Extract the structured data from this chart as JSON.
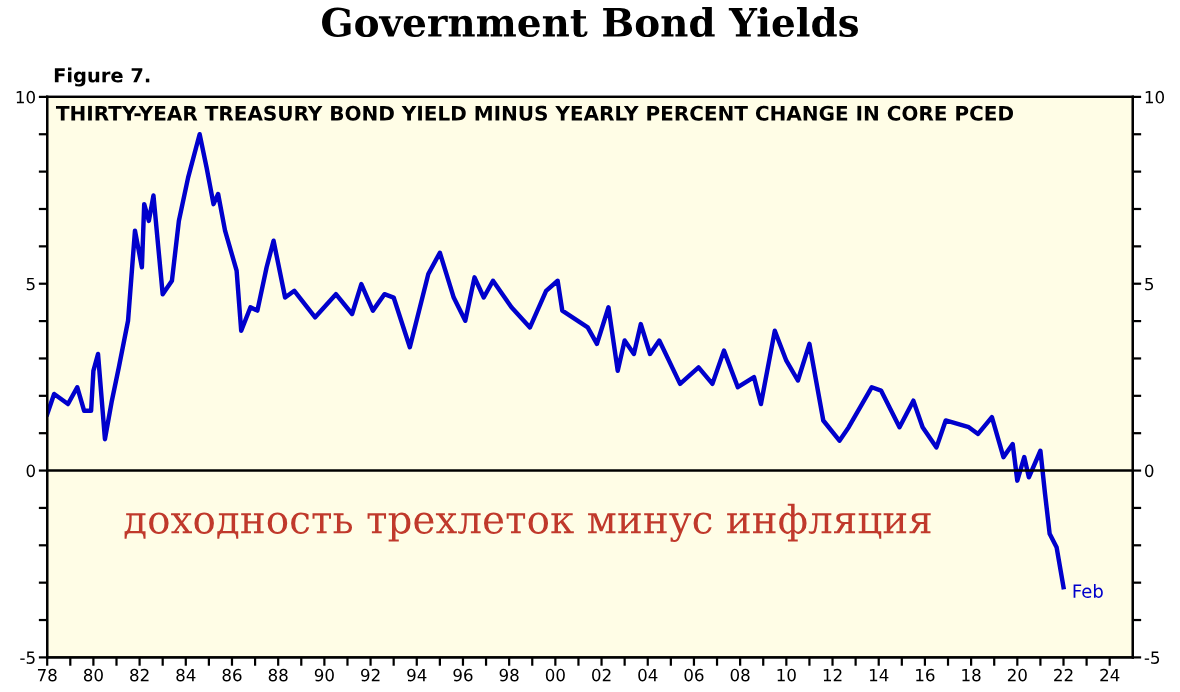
{
  "chart_data": {
    "type": "line",
    "title": "Government Bond Yields",
    "subtitle": "THIRTY-YEAR TREASURY BOND YIELD MINUS YEARLY PERCENT CHANGE IN CORE PCED",
    "x": [
      1978.0,
      1978.3,
      1978.9,
      1979.3,
      1979.6,
      1979.9,
      1980.0,
      1980.2,
      1980.5,
      1980.8,
      1981.1,
      1981.5,
      1981.8,
      1982.1,
      1982.2,
      1982.4,
      1982.6,
      1983.0,
      1983.4,
      1983.7,
      1984.1,
      1984.6,
      1984.9,
      1985.2,
      1985.4,
      1985.7,
      1986.2,
      1986.4,
      1986.8,
      1987.1,
      1987.5,
      1987.8,
      1988.3,
      1988.7,
      1989.6,
      1990.5,
      1991.2,
      1991.6,
      1992.1,
      1992.6,
      1993.0,
      1993.7,
      1994.5,
      1995.0,
      1995.6,
      1996.1,
      1996.5,
      1996.9,
      1997.3,
      1998.1,
      1998.9,
      1999.6,
      2000.1,
      2000.3,
      2001.4,
      2001.8,
      2002.3,
      2002.7,
      2003.0,
      2003.4,
      2003.7,
      2004.1,
      2004.5,
      2005.4,
      2006.2,
      2006.8,
      2007.3,
      2007.9,
      2008.6,
      2008.9,
      2009.5,
      2010.0,
      2010.5,
      2011.0,
      2011.6,
      2012.3,
      2012.7,
      2013.7,
      2014.1,
      2014.9,
      2015.5,
      2015.9,
      2016.5,
      2016.9,
      2017.9,
      2018.3,
      2018.9,
      2019.4,
      2019.8,
      2020.0,
      2020.3,
      2020.5,
      2021.0,
      2021.2,
      2021.4,
      2021.7,
      2022.0
    ],
    "series": [
      {
        "color": "#0000cc",
        "values": [
          1.51,
          2.05,
          1.78,
          2.23,
          1.6,
          1.6,
          2.67,
          3.12,
          0.84,
          1.87,
          2.76,
          4.01,
          6.42,
          5.44,
          7.13,
          6.68,
          7.36,
          4.72,
          5.08,
          6.68,
          7.84,
          9.0,
          8.11,
          7.13,
          7.4,
          6.42,
          5.35,
          3.74,
          4.37,
          4.28,
          5.44,
          6.15,
          4.63,
          4.81,
          4.1,
          4.72,
          4.19,
          4.99,
          4.28,
          4.72,
          4.63,
          3.3,
          5.26,
          5.83,
          4.63,
          4.01,
          5.17,
          4.63,
          5.08,
          4.37,
          3.83,
          4.81,
          5.08,
          4.28,
          3.83,
          3.39,
          4.37,
          2.67,
          3.48,
          3.12,
          3.92,
          3.12,
          3.48,
          2.32,
          2.76,
          2.32,
          3.21,
          2.23,
          2.5,
          1.78,
          3.74,
          2.94,
          2.41,
          3.39,
          1.34,
          0.8,
          1.16,
          2.23,
          2.14,
          1.16,
          1.87,
          1.16,
          0.62,
          1.34,
          1.16,
          0.98,
          1.43,
          0.36,
          0.71,
          -0.27,
          0.36,
          -0.18,
          0.53,
          -0.62,
          -1.69,
          -2.05,
          -3.12
        ]
      }
    ],
    "xlim": [
      1978,
      2025
    ],
    "xticks": [
      {
        "value": 1978,
        "label": "78"
      },
      {
        "value": 1979,
        "label": null
      },
      {
        "value": 1980,
        "label": "80"
      },
      {
        "value": 1981,
        "label": null
      },
      {
        "value": 1982,
        "label": "82"
      },
      {
        "value": 1983,
        "label": null
      },
      {
        "value": 1984,
        "label": "84"
      },
      {
        "value": 1985,
        "label": null
      },
      {
        "value": 1986,
        "label": "86"
      },
      {
        "value": 1987,
        "label": null
      },
      {
        "value": 1988,
        "label": "88"
      },
      {
        "value": 1989,
        "label": null
      },
      {
        "value": 1990,
        "label": "90"
      },
      {
        "value": 1991,
        "label": null
      },
      {
        "value": 1992,
        "label": "92"
      },
      {
        "value": 1993,
        "label": null
      },
      {
        "value": 1994,
        "label": "94"
      },
      {
        "value": 1995,
        "label": null
      },
      {
        "value": 1996,
        "label": "96"
      },
      {
        "value": 1997,
        "label": null
      },
      {
        "value": 1998,
        "label": "98"
      },
      {
        "value": 1999,
        "label": null
      },
      {
        "value": 2000,
        "label": "00"
      },
      {
        "value": 2001,
        "label": null
      },
      {
        "value": 2002,
        "label": "02"
      },
      {
        "value": 2003,
        "label": null
      },
      {
        "value": 2004,
        "label": "04"
      },
      {
        "value": 2005,
        "label": null
      },
      {
        "value": 2006,
        "label": "06"
      },
      {
        "value": 2007,
        "label": null
      },
      {
        "value": 2008,
        "label": "08"
      },
      {
        "value": 2009,
        "label": null
      },
      {
        "value": 2010,
        "label": "10"
      },
      {
        "value": 2011,
        "label": null
      },
      {
        "value": 2012,
        "label": "12"
      },
      {
        "value": 2013,
        "label": null
      },
      {
        "value": 2014,
        "label": "14"
      },
      {
        "value": 2015,
        "label": null
      },
      {
        "value": 2016,
        "label": "16"
      },
      {
        "value": 2017,
        "label": null
      },
      {
        "value": 2018,
        "label": "18"
      },
      {
        "value": 2019,
        "label": null
      },
      {
        "value": 2020,
        "label": "20"
      },
      {
        "value": 2021,
        "label": null
      },
      {
        "value": 2022,
        "label": "22"
      },
      {
        "value": 2023,
        "label": null
      },
      {
        "value": 2024,
        "label": "24"
      }
    ],
    "ylim": [
      -5,
      10
    ],
    "yticks": [
      -5,
      {
        "value": -4,
        "label": null
      },
      {
        "value": -3,
        "label": null
      },
      {
        "value": -2,
        "label": null
      },
      {
        "value": -1,
        "label": null
      },
      0,
      {
        "value": 1,
        "label": null
      },
      {
        "value": 2,
        "label": null
      },
      {
        "value": 3,
        "label": null
      },
      {
        "value": 4,
        "label": null
      },
      5,
      {
        "value": 6,
        "label": null
      },
      {
        "value": 7,
        "label": null
      },
      {
        "value": 8,
        "label": null
      },
      {
        "value": 9,
        "label": null
      },
      10
    ],
    "y2lim": [
      -5,
      10
    ],
    "y2ticks": [
      -5,
      {
        "value": -4,
        "label": null
      },
      {
        "value": -3,
        "label": null
      },
      {
        "value": -2,
        "label": null
      },
      {
        "value": -1,
        "label": null
      },
      0,
      {
        "value": 1,
        "label": null
      },
      {
        "value": 2,
        "label": null
      },
      {
        "value": 3,
        "label": null
      },
      {
        "value": 4,
        "label": null
      },
      5,
      {
        "value": 6,
        "label": null
      },
      {
        "value": 7,
        "label": null
      },
      {
        "value": 8,
        "label": null
      },
      {
        "value": 9,
        "label": null
      },
      10
    ],
    "ref_lines": [
      {
        "axis": "y",
        "value": 0,
        "color": "#000000"
      }
    ],
    "annotations": [
      "Figure 7.",
      "доходность трехлеток минус инфляция",
      {
        "text": "Feb",
        "x": 2022.0,
        "y": -3.12
      }
    ],
    "grid": false,
    "legend": false,
    "marker": "none",
    "line_style": "solid"
  }
}
